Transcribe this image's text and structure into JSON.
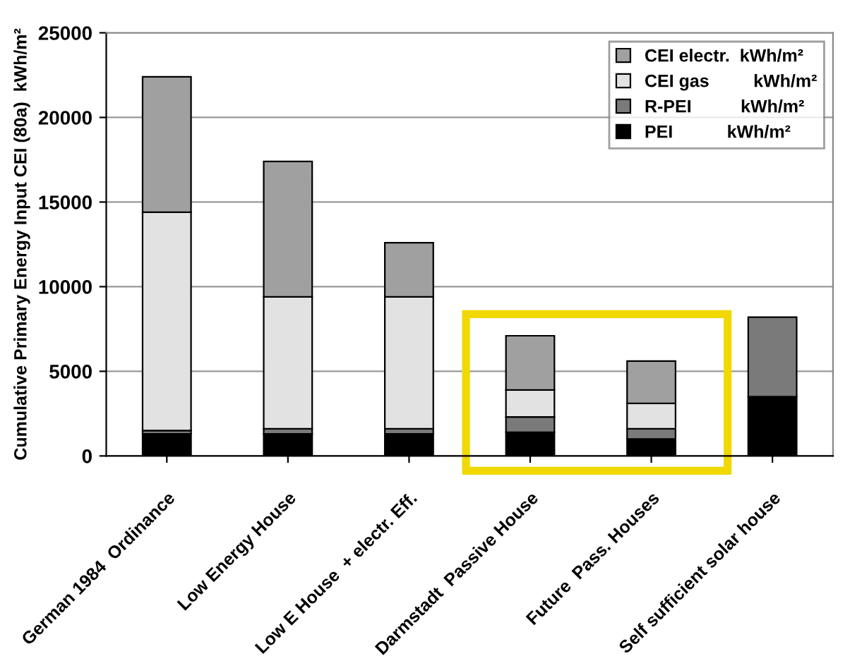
{
  "chart_data": {
    "type": "bar",
    "stacked": true,
    "ylabel": "Cumulative Primary Energy Input CEI (80a)  kWh/m²",
    "categories": [
      "German 1984  Ordinance",
      "Low Energy House",
      "Low E House  + electr. Eff.",
      "Darmstadt  Passive House",
      "Future  Pass. Houses",
      "Self sufficient solar house"
    ],
    "series": [
      {
        "name": "PEI           kWh/m²",
        "color": "#000000",
        "values": [
          1300,
          1300,
          1300,
          1400,
          1000,
          3500
        ]
      },
      {
        "name": "R-PEI          kWh/m²",
        "color": "#7a7a7a",
        "values": [
          200,
          300,
          300,
          900,
          600,
          4700
        ]
      },
      {
        "name": "CEI gas         kWh/m²",
        "color": "#e2e2e2",
        "values": [
          12900,
          7800,
          7800,
          1600,
          1500,
          null
        ]
      },
      {
        "name": "CEI electr.  kWh/m²",
        "color": "#a0a0a0",
        "values": [
          8000,
          8000,
          3200,
          3200,
          2500,
          null
        ]
      }
    ],
    "ylim": [
      0,
      25000
    ],
    "yticks": [
      0,
      5000,
      10000,
      15000,
      20000,
      25000
    ],
    "grid": "y",
    "legend": "top right"
  }
}
